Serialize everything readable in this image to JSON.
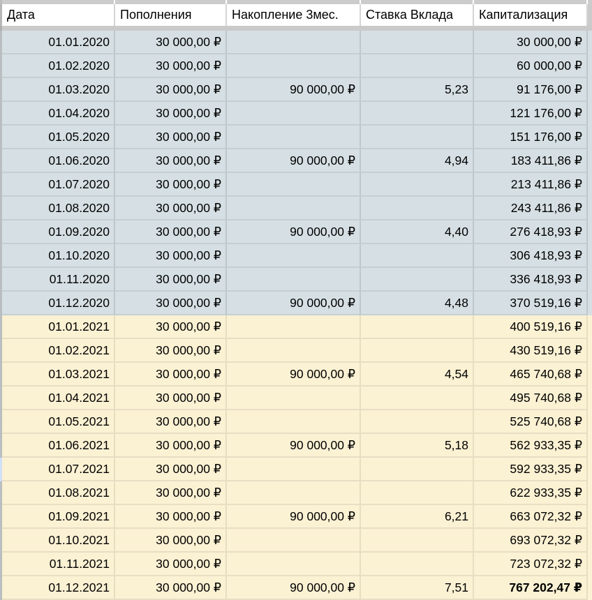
{
  "colors": {
    "header_bg": "#ffffff",
    "block_2020_bg": "#d6e0e4",
    "block_2021_bg": "#fbf1d3",
    "separator_gray": "#cacaca",
    "row_edge_highlight": "#cfe0f7",
    "text": "#000000"
  },
  "table": {
    "columns": [
      {
        "id": "date",
        "label": "Дата"
      },
      {
        "id": "deposit",
        "label": "Пополнения"
      },
      {
        "id": "accumulation-3m",
        "label": "Накопление 3мес."
      },
      {
        "id": "rate",
        "label": "Ставка Вклада"
      },
      {
        "id": "capitalization",
        "label": "Капитализация"
      }
    ],
    "rows": [
      {
        "date": "01.01.2020",
        "deposit": "30 000,00 ₽",
        "accumulation": "",
        "rate": "",
        "capitalization": "30 000,00 ₽"
      },
      {
        "date": "01.02.2020",
        "deposit": "30 000,00 ₽",
        "accumulation": "",
        "rate": "",
        "capitalization": "60 000,00 ₽"
      },
      {
        "date": "01.03.2020",
        "deposit": "30 000,00 ₽",
        "accumulation": "90 000,00 ₽",
        "rate": "5,23",
        "capitalization": "91 176,00 ₽"
      },
      {
        "date": "01.04.2020",
        "deposit": "30 000,00 ₽",
        "accumulation": "",
        "rate": "",
        "capitalization": "121 176,00 ₽"
      },
      {
        "date": "01.05.2020",
        "deposit": "30 000,00 ₽",
        "accumulation": "",
        "rate": "",
        "capitalization": "151 176,00 ₽"
      },
      {
        "date": "01.06.2020",
        "deposit": "30 000,00 ₽",
        "accumulation": "90 000,00 ₽",
        "rate": "4,94",
        "capitalization": "183 411,86 ₽"
      },
      {
        "date": "01.07.2020",
        "deposit": "30 000,00 ₽",
        "accumulation": "",
        "rate": "",
        "capitalization": "213 411,86 ₽"
      },
      {
        "date": "01.08.2020",
        "deposit": "30 000,00 ₽",
        "accumulation": "",
        "rate": "",
        "capitalization": "243 411,86 ₽"
      },
      {
        "date": "01.09.2020",
        "deposit": "30 000,00 ₽",
        "accumulation": "90 000,00 ₽",
        "rate": "4,40",
        "capitalization": "276 418,93 ₽"
      },
      {
        "date": "01.10.2020",
        "deposit": "30 000,00 ₽",
        "accumulation": "",
        "rate": "",
        "capitalization": "306 418,93 ₽"
      },
      {
        "date": "01.11.2020",
        "deposit": "30 000,00 ₽",
        "accumulation": "",
        "rate": "",
        "capitalization": "336 418,93 ₽"
      },
      {
        "date": "01.12.2020",
        "deposit": "30 000,00 ₽",
        "accumulation": "90 000,00 ₽",
        "rate": "4,48",
        "capitalization": "370 519,16 ₽"
      },
      {
        "date": "01.01.2021",
        "deposit": "30 000,00 ₽",
        "accumulation": "",
        "rate": "",
        "capitalization": "400 519,16 ₽"
      },
      {
        "date": "01.02.2021",
        "deposit": "30 000,00 ₽",
        "accumulation": "",
        "rate": "",
        "capitalization": "430 519,16 ₽"
      },
      {
        "date": "01.03.2021",
        "deposit": "30 000,00 ₽",
        "accumulation": "90 000,00 ₽",
        "rate": "4,54",
        "capitalization": "465 740,68 ₽"
      },
      {
        "date": "01.04.2021",
        "deposit": "30 000,00 ₽",
        "accumulation": "",
        "rate": "",
        "capitalization": "495 740,68 ₽"
      },
      {
        "date": "01.05.2021",
        "deposit": "30 000,00 ₽",
        "accumulation": "",
        "rate": "",
        "capitalization": "525 740,68 ₽"
      },
      {
        "date": "01.06.2021",
        "deposit": "30 000,00 ₽",
        "accumulation": "90 000,00 ₽",
        "rate": "5,18",
        "capitalization": "562 933,35 ₽"
      },
      {
        "date": "01.07.2021",
        "deposit": "30 000,00 ₽",
        "accumulation": "",
        "rate": "",
        "capitalization": "592 933,35 ₽"
      },
      {
        "date": "01.08.2021",
        "deposit": "30 000,00 ₽",
        "accumulation": "",
        "rate": "",
        "capitalization": "622 933,35 ₽"
      },
      {
        "date": "01.09.2021",
        "deposit": "30 000,00 ₽",
        "accumulation": "90 000,00 ₽",
        "rate": "6,21",
        "capitalization": "663 072,32 ₽"
      },
      {
        "date": "01.10.2021",
        "deposit": "30 000,00 ₽",
        "accumulation": "",
        "rate": "",
        "capitalization": "693 072,32 ₽"
      },
      {
        "date": "01.11.2021",
        "deposit": "30 000,00 ₽",
        "accumulation": "",
        "rate": "",
        "capitalization": "723 072,32 ₽"
      },
      {
        "date": "01.12.2021",
        "deposit": "30 000,00 ₽",
        "accumulation": "90 000,00 ₽",
        "rate": "7,51",
        "capitalization": "767 202,47 ₽",
        "bold_capitalization": true
      }
    ]
  },
  "selection": {
    "highlighted_row_date": "01.07.2021"
  }
}
